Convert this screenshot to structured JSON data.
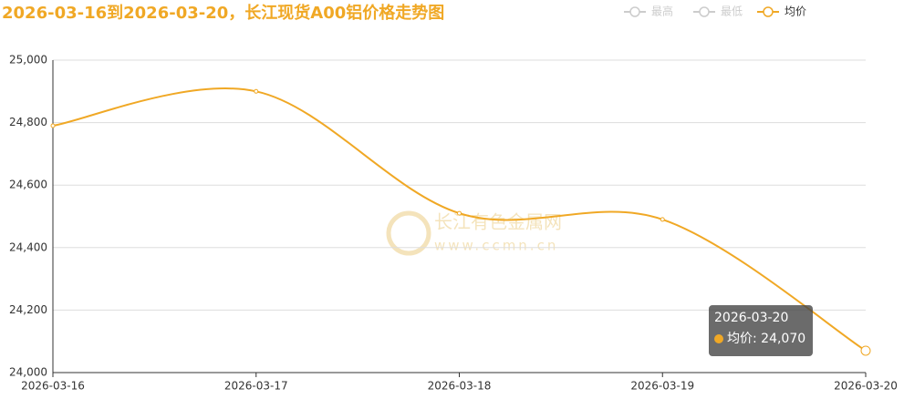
{
  "chart_data": {
    "type": "line",
    "title": "2026-03-16到2026-03-20，长江现货A00铝价格走势图",
    "categories": [
      "2026-03-16",
      "2026-03-17",
      "2026-03-18",
      "2026-03-19",
      "2026-03-20"
    ],
    "series": [
      {
        "name": "最高",
        "color": "#cccccc",
        "hidden": true,
        "values": [
          null,
          null,
          null,
          null,
          null
        ]
      },
      {
        "name": "最低",
        "color": "#cccccc",
        "hidden": true,
        "values": [
          null,
          null,
          null,
          null,
          null
        ]
      },
      {
        "name": "均价",
        "color": "#f0a825",
        "values": [
          24790,
          24900,
          24510,
          24490,
          24070
        ]
      }
    ],
    "ylim": [
      24000,
      25000
    ],
    "yticks": [
      {
        "value": 24000,
        "label": "24,000"
      },
      {
        "value": 24200,
        "label": "24,200"
      },
      {
        "value": 24400,
        "label": "24,400"
      },
      {
        "value": 24600,
        "label": "24,600"
      },
      {
        "value": 24800,
        "label": "24,800"
      },
      {
        "value": 25000,
        "label": "25,000"
      }
    ],
    "grid": true,
    "smooth": true,
    "tooltip": {
      "title": "2026-03-20",
      "text": "均价: 24,070"
    },
    "watermark": {
      "name": "长江有色金属网",
      "url": "www.ccmn.cn"
    }
  }
}
